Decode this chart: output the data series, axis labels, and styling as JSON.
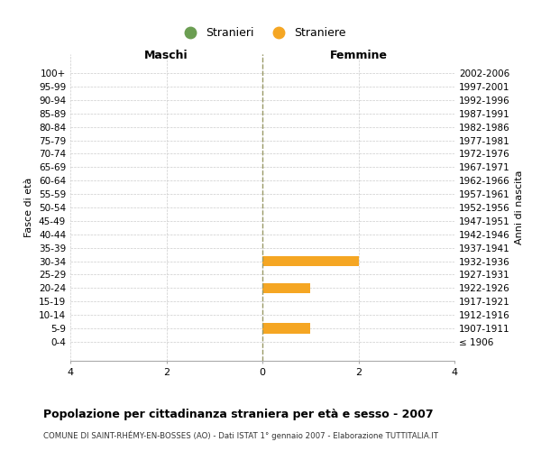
{
  "age_groups": [
    "100+",
    "95-99",
    "90-94",
    "85-89",
    "80-84",
    "75-79",
    "70-74",
    "65-69",
    "60-64",
    "55-59",
    "50-54",
    "45-49",
    "40-44",
    "35-39",
    "30-34",
    "25-29",
    "20-24",
    "15-19",
    "10-14",
    "5-9",
    "0-4"
  ],
  "birth_years": [
    "≤ 1906",
    "1907-1911",
    "1912-1916",
    "1917-1921",
    "1922-1926",
    "1927-1931",
    "1932-1936",
    "1937-1941",
    "1942-1946",
    "1947-1951",
    "1952-1956",
    "1957-1961",
    "1962-1966",
    "1967-1971",
    "1972-1976",
    "1977-1981",
    "1982-1986",
    "1987-1991",
    "1992-1996",
    "1997-2001",
    "2002-2006"
  ],
  "maschi_stranieri": [
    0,
    0,
    0,
    0,
    0,
    0,
    0,
    0,
    0,
    0,
    0,
    0,
    0,
    0,
    0,
    0,
    0,
    0,
    0,
    0,
    0
  ],
  "femmine_straniere": [
    0,
    0,
    0,
    0,
    0,
    0,
    0,
    0,
    0,
    0,
    0,
    0,
    0,
    0,
    2,
    0,
    1,
    0,
    0,
    1,
    0
  ],
  "color_maschi": "#6b9e52",
  "color_femmine": "#f5a623",
  "color_vline": "#999966",
  "xlim": 4,
  "title": "Popolazione per cittadinanza straniera per età e sesso - 2007",
  "subtitle": "COMUNE DI SAINT-RHÉMY-EN-BOSSES (AO) - Dati ISTAT 1° gennaio 2007 - Elaborazione TUTTITALIA.IT",
  "ylabel_left": "Fasce di età",
  "ylabel_right": "Anni di nascita",
  "legend_maschi": "Stranieri",
  "legend_femmine": "Straniere",
  "xlabel_left": "Maschi",
  "xlabel_right": "Femmine",
  "background_color": "#ffffff",
  "grid_color": "#cccccc",
  "bar_height": 0.75
}
